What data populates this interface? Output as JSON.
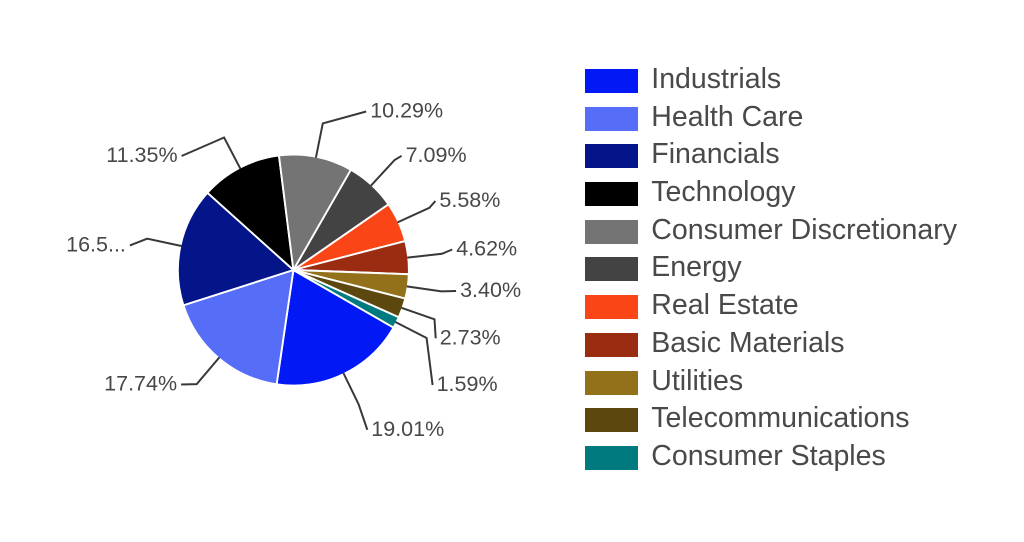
{
  "chart_data": {
    "type": "pie",
    "title": "",
    "legend_position": "right",
    "start_angle_clockwise_from_top_deg": 119.9,
    "slices": [
      {
        "label": "Industrials",
        "value": 19.01,
        "value_label": "19.01%",
        "color": "#0218f5"
      },
      {
        "label": "Health Care",
        "value": 17.74,
        "value_label": "17.74%",
        "color": "#566df8"
      },
      {
        "label": "Financials",
        "value": 16.59,
        "value_label": "16.5...",
        "color": "#031589"
      },
      {
        "label": "Technology",
        "value": 11.35,
        "value_label": "11.35%",
        "color": "#000000"
      },
      {
        "label": "Consumer Discretionary",
        "value": 10.29,
        "value_label": "10.29%",
        "color": "#747474"
      },
      {
        "label": "Energy",
        "value": 7.09,
        "value_label": "7.09%",
        "color": "#434343"
      },
      {
        "label": "Real Estate",
        "value": 5.58,
        "value_label": "5.58%",
        "color": "#fa4616"
      },
      {
        "label": "Basic Materials",
        "value": 4.62,
        "value_label": "4.62%",
        "color": "#9a2d11"
      },
      {
        "label": "Utilities",
        "value": 3.4,
        "value_label": "3.40%",
        "color": "#93701a"
      },
      {
        "label": "Telecommunications",
        "value": 2.73,
        "value_label": "2.73%",
        "color": "#5c470f"
      },
      {
        "label": "Consumer Staples",
        "value": 1.59,
        "value_label": "1.59%",
        "color": "#007a7e"
      }
    ]
  }
}
